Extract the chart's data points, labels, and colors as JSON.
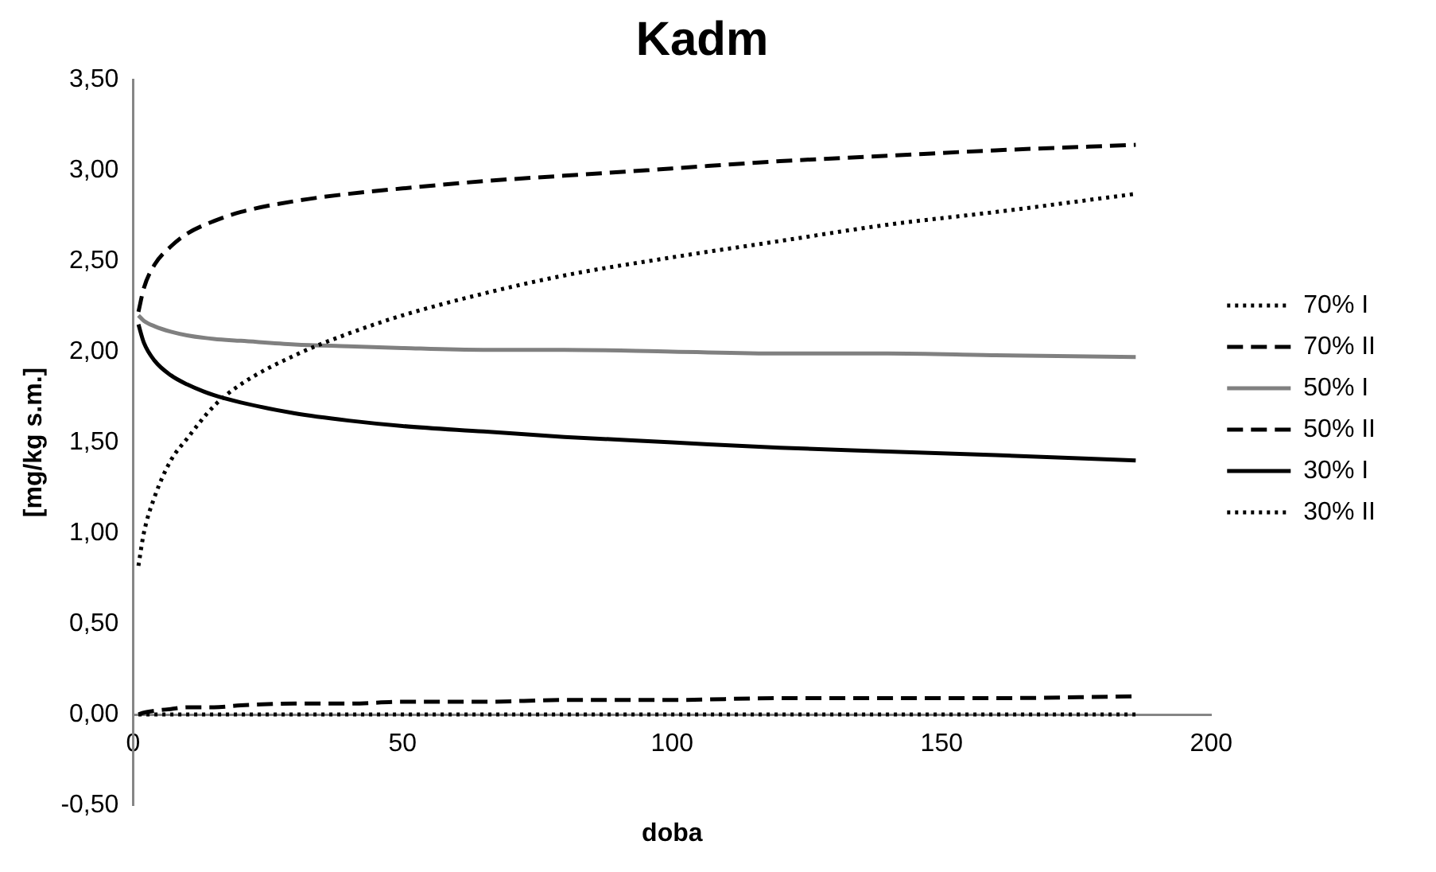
{
  "chart_data": {
    "type": "line",
    "title": "Kadm",
    "xlabel": "doba",
    "ylabel": "[mg/kg s.m.]",
    "x": [
      1,
      2,
      4,
      7,
      10,
      15,
      20,
      30,
      40,
      50,
      65,
      80,
      100,
      120,
      140,
      160,
      186
    ],
    "xlim": [
      0,
      200
    ],
    "xticks": [
      0,
      50,
      100,
      150,
      200
    ],
    "ylim": [
      -0.5,
      3.5
    ],
    "yticks": [
      {
        "value": -0.5,
        "label": "-0,50"
      },
      {
        "value": 0,
        "label": "0,00"
      },
      {
        "value": 0.5,
        "label": "0,50"
      },
      {
        "value": 1,
        "label": "1,00"
      },
      {
        "value": 1.5,
        "label": "1,50"
      },
      {
        "value": 2,
        "label": "2,00"
      },
      {
        "value": 2.5,
        "label": "2,50"
      },
      {
        "value": 3,
        "label": "3,00"
      },
      {
        "value": 3.5,
        "label": "3,50"
      }
    ],
    "grid": false,
    "legend": "right",
    "marker": "none",
    "series": [
      {
        "name": "70% I",
        "color": "#000000",
        "line_style": "dotted",
        "values": [
          0.82,
          1.0,
          1.2,
          1.4,
          1.52,
          1.7,
          1.82,
          1.98,
          2.1,
          2.2,
          2.32,
          2.42,
          2.52,
          2.61,
          2.7,
          2.77,
          2.87
        ]
      },
      {
        "name": "70% II",
        "color": "#000000",
        "line_style": "dashed",
        "values": [
          0.0,
          0.01,
          0.02,
          0.03,
          0.04,
          0.04,
          0.05,
          0.06,
          0.06,
          0.07,
          0.07,
          0.08,
          0.08,
          0.09,
          0.09,
          0.09,
          0.1
        ]
      },
      {
        "name": "50% I",
        "color": "#808080",
        "line_style": "solid",
        "values": [
          2.2,
          2.17,
          2.14,
          2.11,
          2.09,
          2.07,
          2.06,
          2.04,
          2.03,
          2.02,
          2.01,
          2.01,
          2.0,
          1.99,
          1.99,
          1.98,
          1.97
        ]
      },
      {
        "name": "50% II",
        "color": "#000000",
        "line_style": "dashed",
        "values": [
          2.22,
          2.35,
          2.48,
          2.58,
          2.65,
          2.72,
          2.77,
          2.83,
          2.87,
          2.9,
          2.94,
          2.97,
          3.01,
          3.05,
          3.08,
          3.11,
          3.14
        ]
      },
      {
        "name": "30% I",
        "color": "#000000",
        "line_style": "solid",
        "values": [
          2.15,
          2.05,
          1.95,
          1.87,
          1.82,
          1.76,
          1.72,
          1.66,
          1.62,
          1.59,
          1.56,
          1.53,
          1.5,
          1.47,
          1.45,
          1.43,
          1.4
        ]
      },
      {
        "name": "30% II",
        "color": "#000000",
        "line_style": "dotted",
        "values": [
          0,
          0,
          0,
          0,
          0,
          0,
          0,
          0,
          0,
          0,
          0,
          0,
          0,
          0,
          0,
          0,
          0
        ]
      }
    ]
  }
}
